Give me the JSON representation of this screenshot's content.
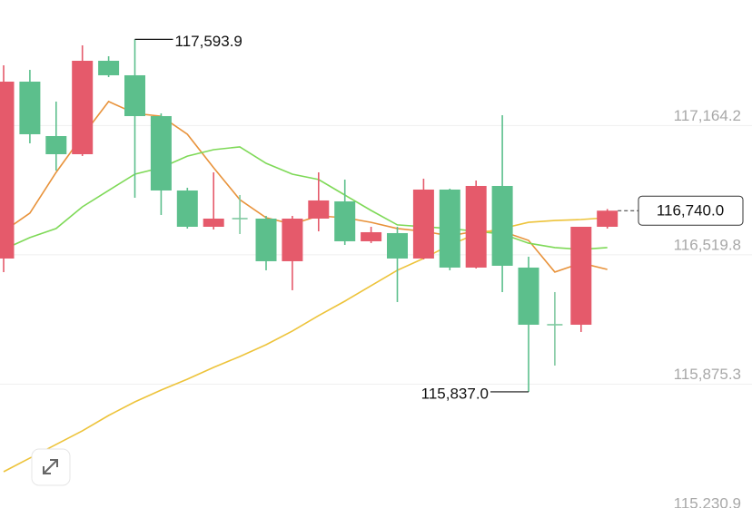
{
  "chart_data": {
    "type": "candlestick",
    "categories": [
      null,
      null,
      null,
      null,
      null,
      null,
      null,
      null,
      null,
      null,
      null,
      null,
      null,
      null,
      null,
      null,
      null,
      null,
      null,
      null,
      null,
      null,
      null,
      null
    ],
    "open": [
      116501.5,
      117383.1,
      117111.8,
      117021.4,
      117487.1,
      117414.8,
      117211.3,
      116840.6,
      116659.7,
      116700.4,
      116700.4,
      116488.0,
      116700.4,
      116786.3,
      116587.4,
      116628.1,
      116501.5,
      116845.1,
      116456.3,
      116863.2,
      116456.3,
      116171.5,
      116171.5,
      116659.7
    ],
    "high": [
      117464.5,
      117441.9,
      117283.6,
      117563.9,
      117509.7,
      117593.9,
      117224.9,
      116854.2,
      116931.0,
      116818.0,
      116714.0,
      116714.0,
      116931.0,
      116894.8,
      116659.7,
      116659.7,
      116899.4,
      116849.6,
      116890.3,
      117215.8,
      116510.6,
      116334.2,
      116659.7,
      116748.2
    ],
    "low": [
      116433.7,
      117075.7,
      116940.0,
      117012.4,
      117405.7,
      116804.4,
      116718.5,
      116650.7,
      116646.2,
      116623.6,
      116442.7,
      116343.3,
      116637.1,
      116569.3,
      116578.4,
      116284.5,
      116497.0,
      116442.7,
      116451.8,
      116334.2,
      115837.0,
      115968.0,
      116135.3,
      116650.7
    ],
    "close": [
      117383.1,
      117120.9,
      117021.4,
      117487.1,
      117414.8,
      117211.3,
      116840.6,
      116659.7,
      116700.4,
      116700.4,
      116488.0,
      116700.4,
      116790.9,
      116587.4,
      116632.6,
      116501.5,
      116845.1,
      116456.3,
      116863.2,
      116465.3,
      116171.5,
      116171.5,
      116659.7,
      116740.0
    ],
    "up_color": "#e55a6b",
    "down_color": "#5cbf8c",
    "doji_color": "#7fc9a0",
    "lines": [
      {
        "color": "#e8923a",
        "values": [
          116637,
          116728,
          116931,
          117112,
          117284,
          117225,
          117211,
          117121,
          116954,
          116795,
          116705,
          116673,
          116714,
          116705,
          116682,
          116651,
          116637,
          116615,
          116637,
          116637,
          116592,
          116434,
          116479,
          116447
        ]
      },
      {
        "color": "#7ed957",
        "values": [
          116547,
          116606,
          116651,
          116759,
          116841,
          116922,
          116954,
          117012,
          117044,
          117058,
          116976,
          116922,
          116895,
          116818,
          116741,
          116669,
          116660,
          116651,
          116637,
          116624,
          116578,
          116556,
          116547,
          116556
        ]
      },
      {
        "color": "#edc33a",
        "values": [
          115439,
          115507,
          115575,
          115643,
          115719,
          115787,
          115846,
          115900,
          115959,
          116013,
          116072,
          116140,
          116217,
          116289,
          116366,
          116443,
          116502,
          116569,
          116624,
          116651,
          116682,
          116691,
          116696,
          116705
        ]
      }
    ],
    "ylim": [
      115230.9,
      117790
    ],
    "yticks": [
      {
        "value": 117164.2,
        "label": "117,164.2"
      },
      {
        "value": 116519.8,
        "label": "116,519.8"
      },
      {
        "value": 115875.3,
        "label": "115,875.3"
      },
      {
        "value": 115230.9,
        "label": "115,230.9"
      }
    ],
    "grid": true,
    "high_annotation": {
      "value": 117593.9,
      "label": "117,593.9"
    },
    "low_annotation": {
      "value": 115837.0,
      "label": "115,837.0"
    },
    "last_price": {
      "value": 116740.0,
      "label": "116,740.0"
    }
  }
}
